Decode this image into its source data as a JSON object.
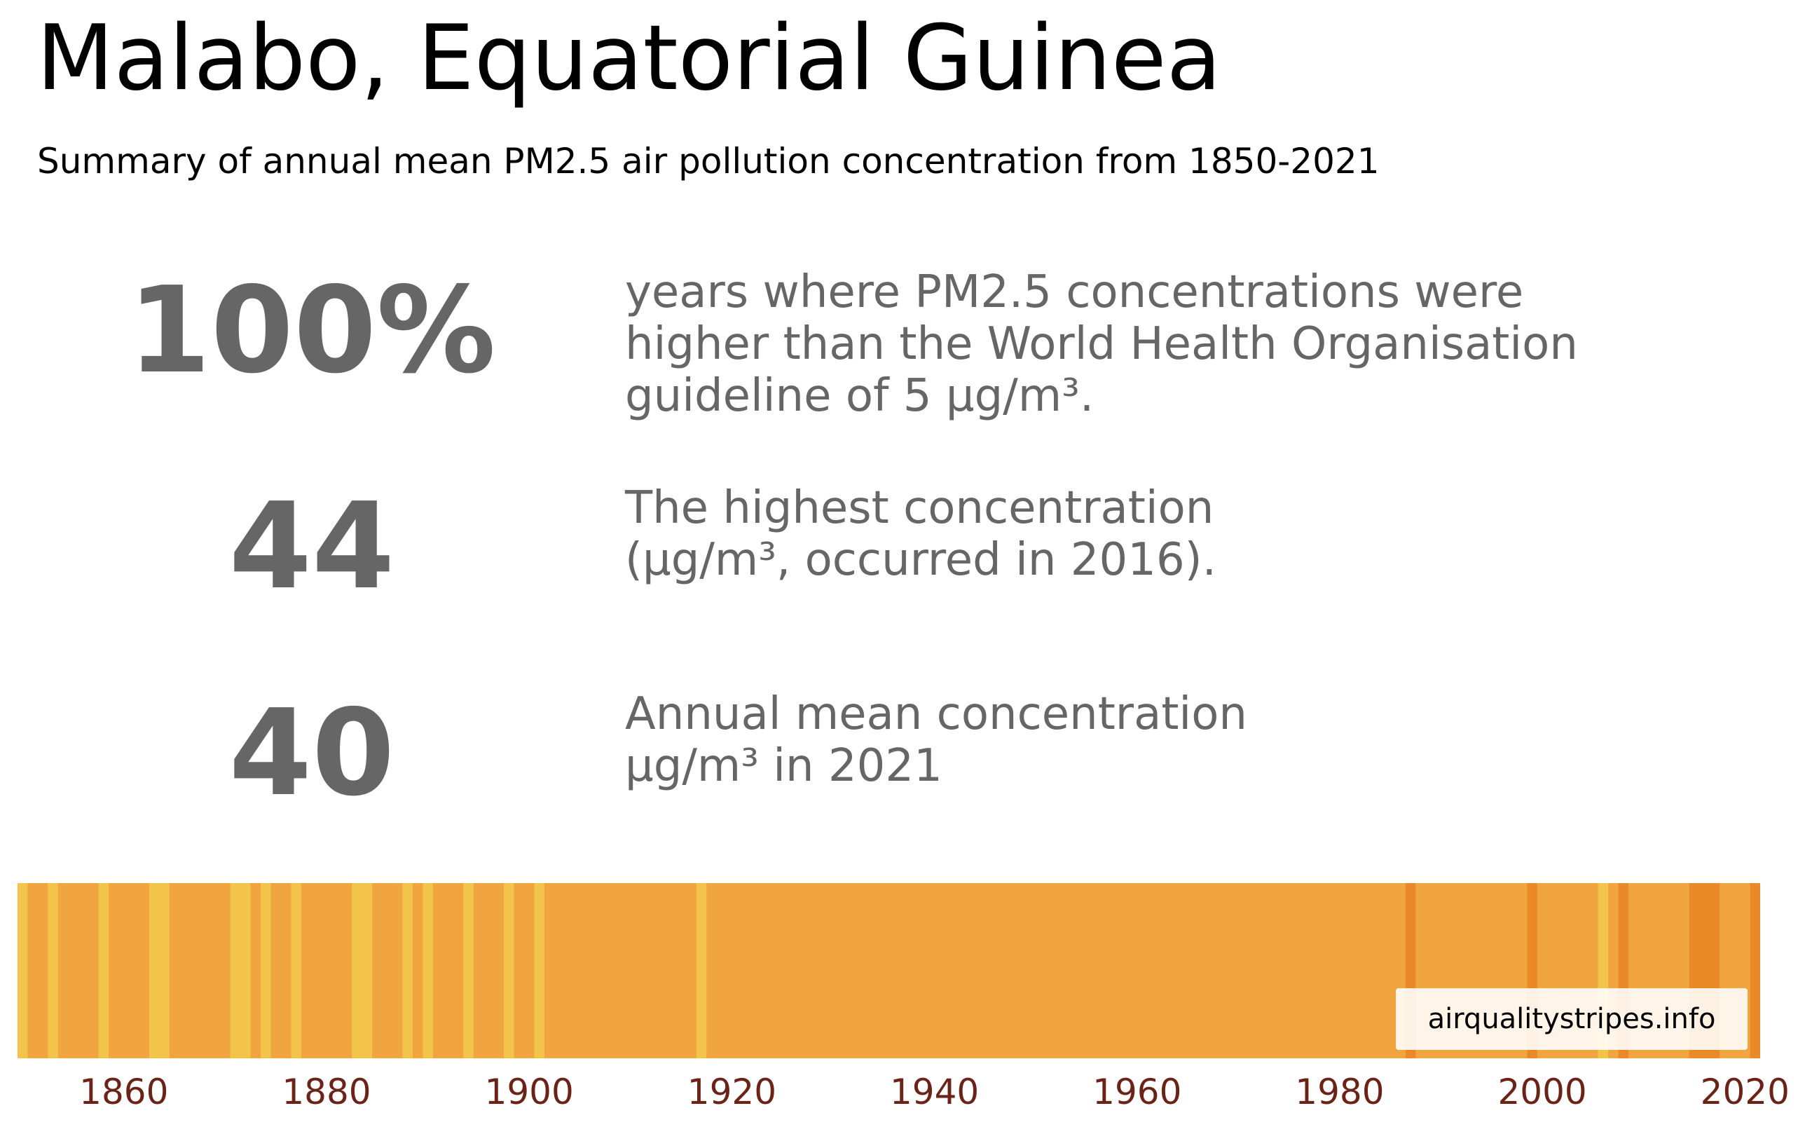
{
  "title": "Malabo, Equatorial Guinea",
  "subtitle": "Summary of annual mean PM2.5 air pollution concentration from 1850-2021",
  "stats": [
    {
      "value": "100%",
      "description": "years where PM2.5 concentrations were\nhigher than the World Health Organisation\nguideline of 5 μg/m³."
    },
    {
      "value": "44",
      "description": "The highest concentration\n(μg/m³, occurred in 2016)."
    },
    {
      "value": "40",
      "description": "Annual mean concentration\nμg/m³ in 2021"
    }
  ],
  "watermark": "airqualitystripes.info",
  "chart_data": {
    "type": "heatmap",
    "x_range": [
      1850,
      2021
    ],
    "xticks": [
      "1860",
      "1880",
      "1900",
      "1920",
      "1940",
      "1960",
      "1980",
      "2000",
      "2020"
    ],
    "tick_values": [
      1860,
      1880,
      1900,
      1920,
      1940,
      1960,
      1980,
      2000,
      2020
    ],
    "colors": {
      "base": "#f0a541",
      "light": "#f3c44a",
      "dark": "#e98927",
      "tick_label": "#6b2318"
    },
    "light_years": [
      1850,
      1853,
      1858,
      1863,
      1864,
      1871,
      1872,
      1874,
      1877,
      1883,
      1884,
      1888,
      1890,
      1894,
      1898,
      1901,
      1917,
      2006
    ],
    "dark_years": [
      1987,
      1999,
      2008,
      2015,
      2016,
      2017,
      2021
    ]
  }
}
